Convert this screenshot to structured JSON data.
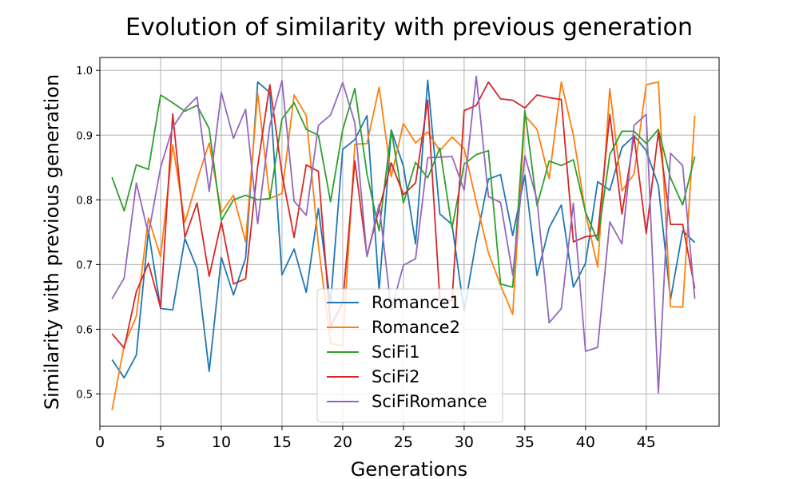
{
  "chart_data": {
    "type": "line",
    "title": "Evolution of similarity with previous generation",
    "xlabel": "Generations",
    "ylabel": "Similarity with previous generation",
    "xlim": [
      0,
      51
    ],
    "ylim": [
      0.45,
      1.02
    ],
    "xticks": [
      0,
      5,
      10,
      15,
      20,
      25,
      30,
      35,
      40,
      45
    ],
    "yticks": [
      0.5,
      0.6,
      0.7,
      0.8,
      0.9,
      1.0
    ],
    "ytick_labels": [
      "0.5",
      "0.6",
      "0.7",
      "0.8",
      "0.9",
      "1.0"
    ],
    "grid": true,
    "legend_position": "lower-center",
    "x": [
      1,
      2,
      3,
      4,
      5,
      6,
      7,
      8,
      9,
      10,
      11,
      12,
      13,
      14,
      15,
      16,
      17,
      18,
      19,
      20,
      21,
      22,
      23,
      24,
      25,
      26,
      27,
      28,
      29,
      30,
      31,
      32,
      33,
      34,
      35,
      36,
      37,
      38,
      39,
      40,
      41,
      42,
      43,
      44,
      45,
      46,
      47,
      48,
      49
    ],
    "series": [
      {
        "name": "Romance1",
        "color": "#1f77b4",
        "values": [
          0.553,
          0.525,
          0.56,
          0.752,
          0.632,
          0.63,
          0.74,
          0.694,
          0.535,
          0.711,
          0.653,
          0.71,
          0.982,
          0.966,
          0.684,
          0.724,
          0.657,
          0.787,
          0.64,
          0.878,
          0.893,
          0.93,
          0.66,
          0.908,
          0.852,
          0.732,
          0.985,
          0.778,
          0.762,
          0.628,
          0.737,
          0.832,
          0.839,
          0.745,
          0.838,
          0.683,
          0.757,
          0.792,
          0.665,
          0.702,
          0.828,
          0.815,
          0.881,
          0.899,
          0.876,
          0.822,
          0.646,
          0.752,
          0.734
        ]
      },
      {
        "name": "Romance2",
        "color": "#ff7f0e",
        "values": [
          0.475,
          0.575,
          0.62,
          0.772,
          0.712,
          0.885,
          0.765,
          0.83,
          0.888,
          0.78,
          0.807,
          0.735,
          0.965,
          0.802,
          0.81,
          0.962,
          0.93,
          0.73,
          0.578,
          0.575,
          0.886,
          0.887,
          0.974,
          0.836,
          0.918,
          0.888,
          0.905,
          0.876,
          0.897,
          0.879,
          0.797,
          0.718,
          0.668,
          0.623,
          0.93,
          0.909,
          0.833,
          0.982,
          0.9,
          0.78,
          0.696,
          0.972,
          0.814,
          0.84,
          0.978,
          0.982,
          0.635,
          0.634,
          0.93
        ]
      },
      {
        "name": "SciFi1",
        "color": "#2ca02c",
        "values": [
          0.835,
          0.783,
          0.854,
          0.847,
          0.962,
          0.95,
          0.937,
          0.946,
          0.91,
          0.768,
          0.8,
          0.807,
          0.8,
          0.802,
          0.925,
          0.95,
          0.909,
          0.9,
          0.797,
          0.908,
          0.972,
          0.84,
          0.752,
          0.908,
          0.795,
          0.858,
          0.834,
          0.88,
          0.756,
          0.855,
          0.87,
          0.876,
          0.67,
          0.665,
          0.938,
          0.791,
          0.86,
          0.853,
          0.862,
          0.781,
          0.737,
          0.87,
          0.906,
          0.906,
          0.887,
          0.909,
          0.834,
          0.792,
          0.867
        ]
      },
      {
        "name": "SciFi2",
        "color": "#d62728",
        "values": [
          0.593,
          0.571,
          0.658,
          0.702,
          0.633,
          0.933,
          0.742,
          0.795,
          0.682,
          0.766,
          0.67,
          0.678,
          0.852,
          0.978,
          0.84,
          0.742,
          0.854,
          0.844,
          0.605,
          0.64,
          0.86,
          0.713,
          0.786,
          0.857,
          0.808,
          0.826,
          0.954,
          0.646,
          0.644,
          0.938,
          0.946,
          0.982,
          0.956,
          0.954,
          0.942,
          0.962,
          0.958,
          0.955,
          0.735,
          0.743,
          0.745,
          0.932,
          0.778,
          0.898,
          0.748,
          0.905,
          0.762,
          0.762,
          0.663
        ]
      },
      {
        "name": "SciFiRomance",
        "color": "#9467bd",
        "values": [
          0.647,
          0.679,
          0.826,
          0.747,
          0.85,
          0.912,
          0.94,
          0.959,
          0.813,
          0.966,
          0.895,
          0.94,
          0.763,
          0.915,
          0.984,
          0.798,
          0.776,
          0.915,
          0.931,
          0.981,
          0.919,
          0.712,
          0.793,
          0.63,
          0.699,
          0.709,
          0.865,
          0.866,
          0.867,
          0.815,
          0.991,
          0.805,
          0.796,
          0.684,
          0.868,
          0.8,
          0.61,
          0.632,
          0.795,
          0.566,
          0.572,
          0.766,
          0.732,
          0.915,
          0.932,
          0.502,
          0.872,
          0.853,
          0.647
        ]
      }
    ]
  }
}
